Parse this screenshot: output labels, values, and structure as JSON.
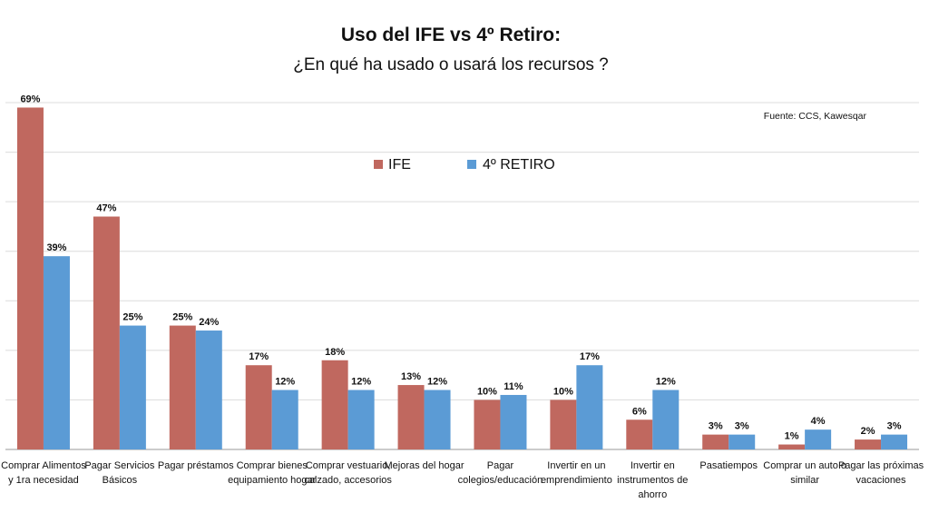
{
  "header": {
    "title": "Uso del IFE vs 4º Retiro:",
    "subtitle": "¿En qué ha usado o usará los recursos ?",
    "source": "Fuente: CCS, Kawesqar"
  },
  "colors": {
    "ife": "#c0685f",
    "retiro": "#5b9bd5"
  },
  "chart_data": {
    "type": "bar",
    "title": "Uso del IFE vs 4º Retiro:",
    "subtitle": "¿En qué ha usado o usará los recursos ?",
    "xlabel": "",
    "ylabel": "",
    "ylim": [
      0,
      70
    ],
    "grid": true,
    "legend_position": "top-center",
    "categories": [
      [
        "Comprar Alimentos",
        "y 1ra necesidad"
      ],
      [
        "Pagar Servicios",
        "Básicos"
      ],
      [
        "Pagar préstamos"
      ],
      [
        "Comprar bienes",
        "equipamiento hogar"
      ],
      [
        "Comprar vestuario,",
        "calzado, accesorios"
      ],
      [
        "Mejoras del hogar"
      ],
      [
        "Pagar",
        "colegios/educación"
      ],
      [
        "Invertir en un",
        "emprendimiento"
      ],
      [
        "Invertir en",
        "instrumentos de",
        "ahorro"
      ],
      [
        "Pasatiempos"
      ],
      [
        "Comprar un auto o",
        "similar"
      ],
      [
        "Pagar las próximas",
        "vacaciones"
      ]
    ],
    "series": [
      {
        "name": "IFE",
        "values": [
          69,
          47,
          25,
          17,
          18,
          13,
          10,
          10,
          6,
          3,
          1,
          2
        ],
        "labels": [
          "69%",
          "47%",
          "25%",
          "17%",
          "18%",
          "13%",
          "10%",
          "10%",
          "6%",
          "3%",
          "1%",
          "2%"
        ]
      },
      {
        "name": "4º RETIRO",
        "values": [
          39,
          25,
          24,
          12,
          12,
          12,
          11,
          17,
          12,
          3,
          4,
          3
        ],
        "labels": [
          "39%",
          "25%",
          "24%",
          "12%",
          "12%",
          "12%",
          "11%",
          "17%",
          "12%",
          "3%",
          "4%",
          "3%"
        ]
      }
    ]
  }
}
